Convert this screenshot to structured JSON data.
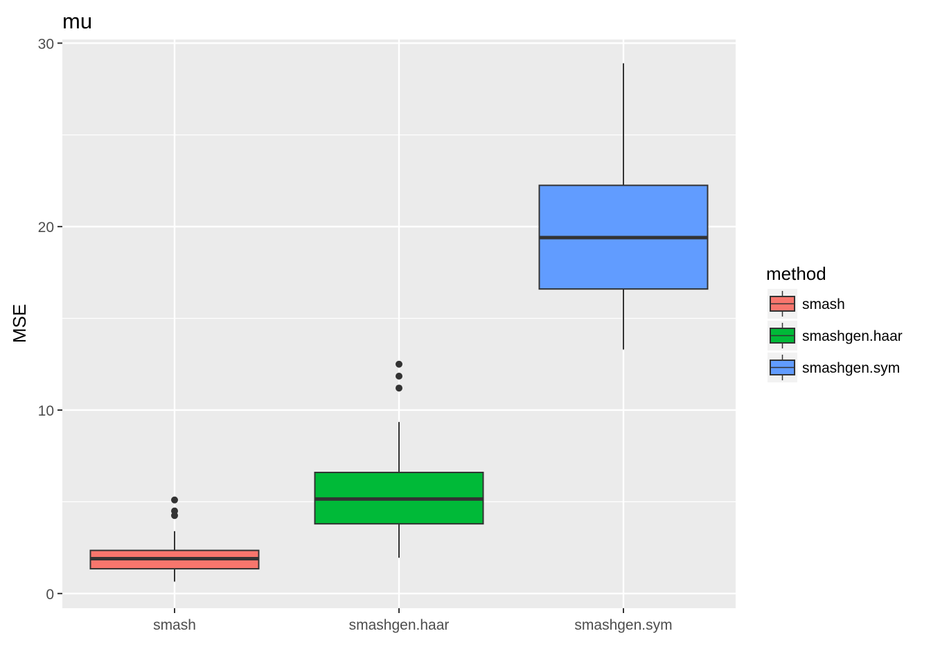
{
  "chart_data": {
    "type": "boxplot",
    "title": "mu",
    "xlabel": "",
    "ylabel": "MSE",
    "ylim": [
      -0.8,
      30.2
    ],
    "yticks": [
      0,
      10,
      20,
      30
    ],
    "categories": [
      "smash",
      "smashgen.haar",
      "smashgen.sym"
    ],
    "boxes": [
      {
        "category": "smash",
        "whisker_low": 0.65,
        "q1": 1.35,
        "median": 1.9,
        "q3": 2.35,
        "whisker_high": 3.4,
        "outliers": [
          4.25,
          4.5,
          5.1
        ]
      },
      {
        "category": "smashgen.haar",
        "whisker_low": 1.95,
        "q1": 3.8,
        "median": 5.15,
        "q3": 6.6,
        "whisker_high": 9.35,
        "outliers": [
          11.2,
          11.85,
          12.5
        ]
      },
      {
        "category": "smashgen.sym",
        "whisker_low": 13.3,
        "q1": 16.6,
        "median": 19.4,
        "q3": 22.25,
        "whisker_high": 28.9,
        "outliers": []
      }
    ],
    "colors": {
      "smash": "#F8766D",
      "smashgen.haar": "#00BA38",
      "smashgen.sym": "#619CFF"
    },
    "grid": true,
    "legend": {
      "title": "method",
      "position": "right",
      "entries": [
        "smash",
        "smashgen.haar",
        "smashgen.sym"
      ]
    }
  }
}
